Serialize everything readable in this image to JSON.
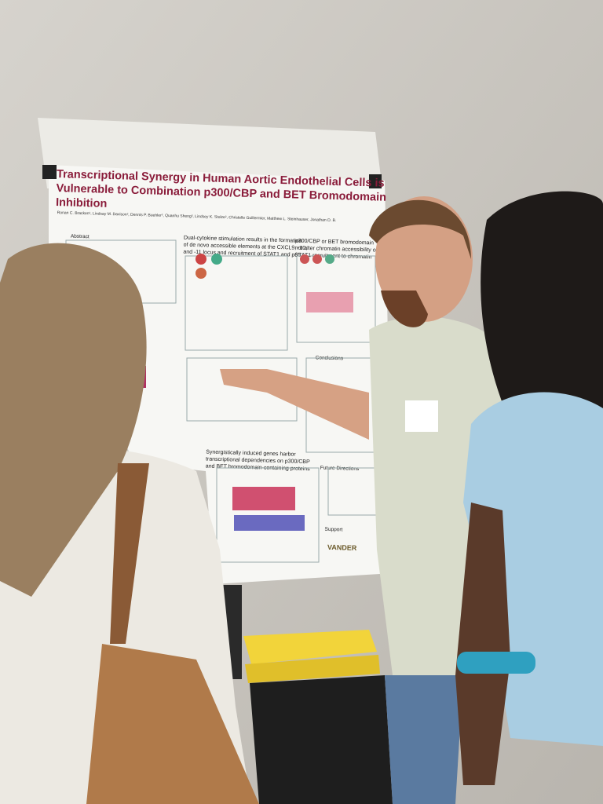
{
  "poster": {
    "title_lines": [
      "Transcriptional Synergy in Human Aortic Endothelial Cells is",
      "Vulnerable to Combination p300/CBP and BET Bromodomain",
      "Inhibition"
    ],
    "authors": "Ronan C. Bracken¹, Lindsay M. Davison², Dennis P. Buehler³, Quanhu Sheng³, Lindsey K. Stolze², Christelle Guillermier, Matthew L. Steinhauser, Jonathan D. B.",
    "sections": [
      {
        "heading": "Abstract"
      },
      {
        "heading": [
          "Dual-cytokine stimulation results in the formation",
          "of de novo accessible elements at the CXCL9, -10,",
          "and -11 locus and recruitment of STAT1 and p65"
        ]
      },
      {
        "heading": [
          "p300/CBP or BET bromodomain",
          "not alter chromatin accessibility or p",
          "STAT1 recruitment to chromatin"
        ]
      },
      {
        "heading": "Conclusions"
      },
      {
        "heading": [
          "Synergistically induced genes harbor",
          "transcriptional dependencies on p300/CBP",
          "and BET bromodomain-containing proteins"
        ]
      },
      {
        "heading": "Future Directions"
      },
      {
        "heading": "Support"
      }
    ],
    "logo": "VANDER"
  }
}
